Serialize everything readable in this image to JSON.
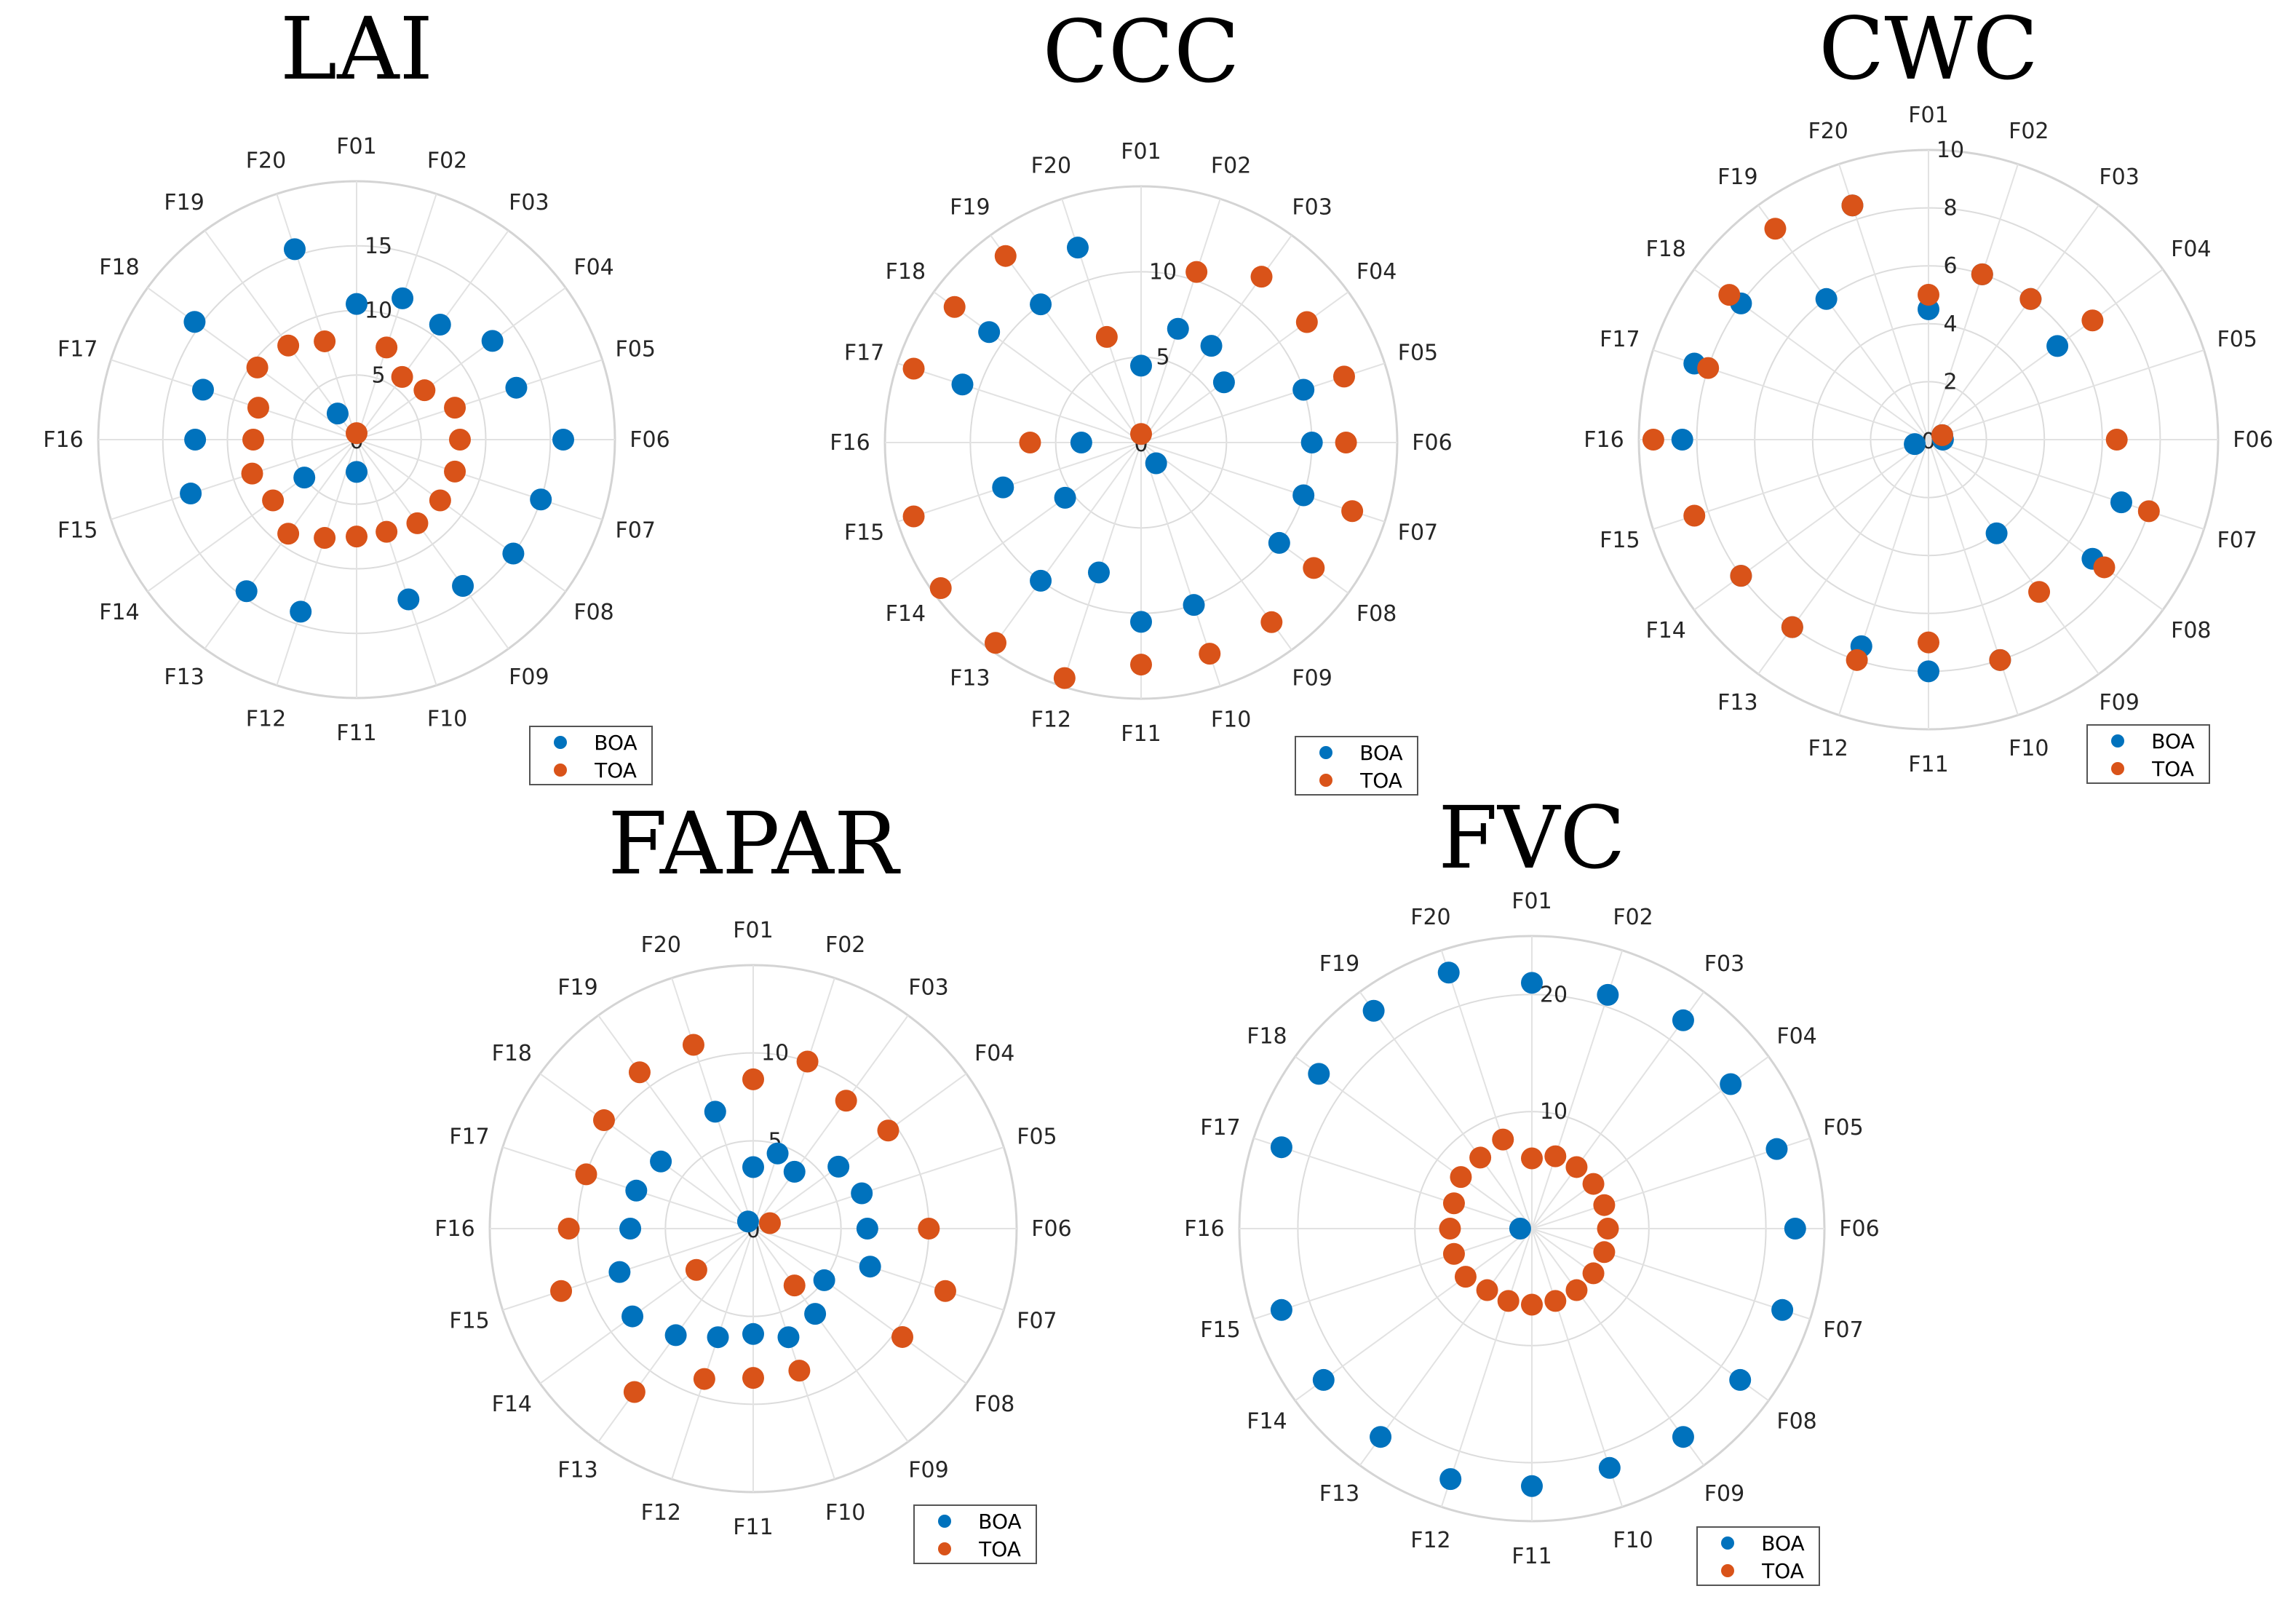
{
  "colors": {
    "BOA": "#0072BD",
    "TOA": "#D95319"
  },
  "chart_data": [
    {
      "type": "scatter",
      "projection": "polar",
      "title": "LAI",
      "angle_labels": [
        "F01",
        "F02",
        "F03",
        "F04",
        "F05",
        "F06",
        "F07",
        "F08",
        "F09",
        "F10",
        "F11",
        "F12",
        "F13",
        "F14",
        "F15",
        "F16",
        "F17",
        "F18",
        "F19",
        "F20"
      ],
      "radial_ticks": [
        0,
        5,
        10,
        15
      ],
      "rlim": [
        0,
        20
      ],
      "legend": [
        "BOA",
        "TOA"
      ],
      "series": [
        {
          "name": "BOA",
          "values": [
            10.5,
            11.5,
            11.0,
            13.0,
            13.0,
            16.0,
            15.0,
            15.0,
            14.0,
            13.0,
            2.5,
            14.0,
            14.5,
            5.0,
            13.5,
            12.5,
            12.5,
            15.5,
            2.5,
            15.5
          ]
        },
        {
          "name": "TOA",
          "values": [
            0.5,
            7.5,
            6.0,
            6.5,
            8.0,
            8.0,
            8.0,
            8.0,
            8.0,
            7.5,
            7.5,
            8.0,
            9.0,
            8.0,
            8.5,
            8.0,
            8.0,
            9.5,
            9.0,
            8.0
          ]
        }
      ]
    },
    {
      "type": "scatter",
      "projection": "polar",
      "title": "CCC",
      "angle_labels": [
        "F01",
        "F02",
        "F03",
        "F04",
        "F05",
        "F06",
        "F07",
        "F08",
        "F09",
        "F10",
        "F11",
        "F12",
        "F13",
        "F14",
        "F15",
        "F16",
        "F17",
        "F18",
        "F19",
        "F20"
      ],
      "radial_ticks": [
        0,
        5,
        10
      ],
      "rlim": [
        0,
        15
      ],
      "legend": [
        "BOA",
        "TOA"
      ],
      "series": [
        {
          "name": "BOA",
          "values": [
            4.5,
            7.0,
            7.0,
            6.0,
            10.0,
            10.0,
            10.0,
            10.0,
            1.5,
            10.0,
            10.5,
            8.0,
            10.0,
            5.5,
            8.5,
            3.5,
            11.0,
            11.0,
            10.0,
            12.0
          ]
        },
        {
          "name": "TOA",
          "values": [
            0.5,
            10.5,
            12.0,
            12.0,
            12.5,
            12.0,
            13.0,
            12.5,
            13.0,
            13.0,
            13.0,
            14.5,
            14.5,
            14.5,
            14.0,
            6.5,
            14.0,
            13.5,
            13.5,
            6.5
          ]
        }
      ]
    },
    {
      "type": "scatter",
      "projection": "polar",
      "title": "CWC",
      "angle_labels": [
        "F01",
        "F02",
        "F03",
        "F04",
        "F05",
        "F06",
        "F07",
        "F08",
        "F09",
        "F10",
        "F11",
        "F12",
        "F13",
        "F14",
        "F15",
        "F16",
        "F17",
        "F18",
        "F19",
        "F20"
      ],
      "radial_ticks": [
        0,
        2,
        4,
        6,
        8,
        10
      ],
      "rlim": [
        0,
        10
      ],
      "legend": [
        "BOA",
        "TOA"
      ],
      "series": [
        {
          "name": "BOA",
          "values": [
            4.5,
            6.0,
            6.0,
            5.5,
            0.5,
            0.5,
            7.0,
            7.0,
            4.0,
            8.0,
            8.0,
            7.5,
            8.0,
            8.0,
            0.5,
            8.5,
            8.5,
            8.0,
            6.0,
            8.5
          ]
        },
        {
          "name": "TOA",
          "values": [
            5.0,
            6.0,
            6.0,
            7.0,
            0.5,
            6.5,
            8.0,
            7.5,
            6.5,
            8.0,
            7.0,
            8.0,
            8.0,
            8.0,
            8.5,
            9.5,
            8.0,
            8.5,
            9.0,
            8.5
          ]
        }
      ]
    },
    {
      "type": "scatter",
      "projection": "polar",
      "title": "FAPAR",
      "angle_labels": [
        "F01",
        "F02",
        "F03",
        "F04",
        "F05",
        "F06",
        "F07",
        "F08",
        "F09",
        "F10",
        "F11",
        "F12",
        "F13",
        "F14",
        "F15",
        "F16",
        "F17",
        "F18",
        "F19",
        "F20"
      ],
      "radial_ticks": [
        0,
        5,
        10
      ],
      "rlim": [
        0,
        15
      ],
      "legend": [
        "BOA",
        "TOA"
      ],
      "series": [
        {
          "name": "BOA",
          "values": [
            3.5,
            4.5,
            4.0,
            6.0,
            6.5,
            6.5,
            7.0,
            5.0,
            6.0,
            6.5,
            6.0,
            6.5,
            7.5,
            8.5,
            8.0,
            7.0,
            7.0,
            6.5,
            0.5,
            7.0
          ]
        },
        {
          "name": "TOA",
          "values": [
            8.5,
            10.0,
            9.0,
            9.5,
            1.0,
            10.0,
            11.5,
            10.5,
            4.0,
            8.5,
            8.5,
            9.0,
            11.5,
            4.0,
            11.5,
            10.5,
            10.0,
            10.5,
            11.0,
            11.0
          ]
        }
      ]
    },
    {
      "type": "scatter",
      "projection": "polar",
      "title": "FVC",
      "angle_labels": [
        "F01",
        "F02",
        "F03",
        "F04",
        "F05",
        "F06",
        "F07",
        "F08",
        "F09",
        "F10",
        "F11",
        "F12",
        "F13",
        "F14",
        "F15",
        "F16",
        "F17",
        "F18",
        "F19",
        "F20"
      ],
      "radial_ticks": [
        10,
        20
      ],
      "rlim": [
        0,
        25
      ],
      "legend": [
        "BOA",
        "TOA"
      ],
      "series": [
        {
          "name": "BOA",
          "values": [
            21.0,
            21.0,
            22.0,
            21.0,
            22.0,
            22.5,
            22.5,
            22.0,
            22.0,
            21.5,
            22.0,
            22.5,
            22.0,
            22.0,
            22.5,
            1.0,
            22.5,
            22.5,
            23.0,
            23.0
          ]
        },
        {
          "name": "TOA",
          "values": [
            6.0,
            6.5,
            6.5,
            6.5,
            6.5,
            6.5,
            6.5,
            6.5,
            6.5,
            6.5,
            6.5,
            6.5,
            6.5,
            7.0,
            7.0,
            7.0,
            7.0,
            7.5,
            7.5,
            8.0
          ]
        }
      ]
    }
  ]
}
